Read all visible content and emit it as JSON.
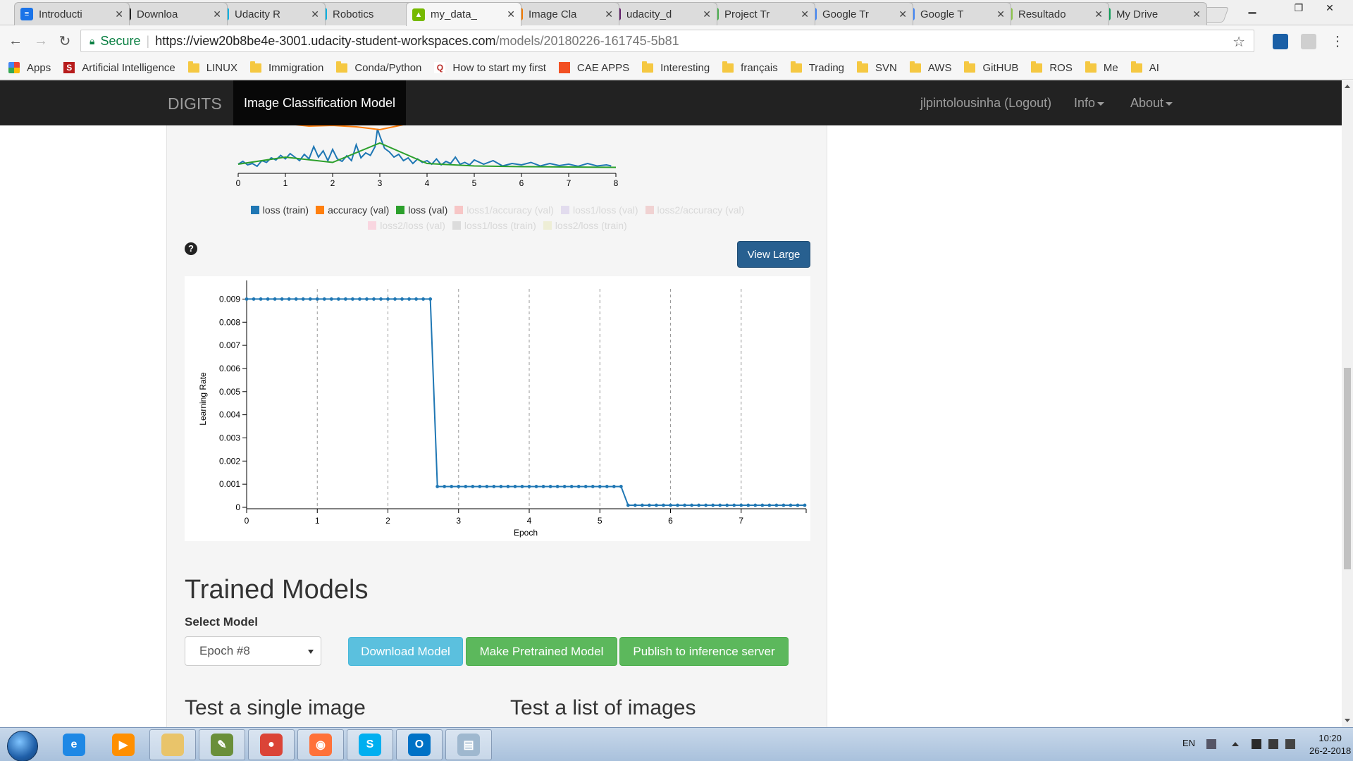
{
  "browser": {
    "tabs": [
      {
        "title": "Introducti",
        "fav_color": "#1a73e8",
        "fav_glyph": "≡",
        "active": false
      },
      {
        "title": "Downloa",
        "fav_color": "#222222",
        "fav_glyph": "●",
        "active": false
      },
      {
        "title": "Udacity R",
        "fav_color": "#02b3e4",
        "fav_glyph": "U",
        "active": false
      },
      {
        "title": "Robotics",
        "fav_color": "#02b3e4",
        "fav_glyph": "U",
        "active": false
      },
      {
        "title": "my_data_",
        "fav_color": "#76b900",
        "fav_glyph": "▲",
        "active": true
      },
      {
        "title": "Image Cla",
        "fav_color": "#f57c00",
        "fav_glyph": "▮",
        "active": false
      },
      {
        "title": "udacity_d",
        "fav_color": "#611f69",
        "fav_glyph": "#",
        "active": false
      },
      {
        "title": "Project Tr",
        "fav_color": "#4caf50",
        "fav_glyph": "6",
        "active": false
      },
      {
        "title": "Google Tr",
        "fav_color": "#4285f4",
        "fav_glyph": "G",
        "active": false
      },
      {
        "title": "Google T",
        "fav_color": "#4285f4",
        "fav_glyph": "G",
        "active": false
      },
      {
        "title": "Resultado",
        "fav_color": "#8bc34a",
        "fav_glyph": "P",
        "active": false
      },
      {
        "title": "My Drive",
        "fav_color": "#0f9d58",
        "fav_glyph": "▲",
        "active": false
      }
    ],
    "secure_label": "Secure",
    "url_host": "https://view20b8be4e-3001.udacity-student-workspaces.com",
    "url_path": "/models/20180226-161745-5b81",
    "bookmarks": [
      {
        "label": "Apps",
        "kind": "apps"
      },
      {
        "label": "Artificial Intelligence",
        "kind": "site",
        "color": "#b71c1c",
        "glyph": "S"
      },
      {
        "label": "LINUX",
        "kind": "folder"
      },
      {
        "label": "Immigration",
        "kind": "folder"
      },
      {
        "label": "Conda/Python",
        "kind": "folder"
      },
      {
        "label": "How to start my first",
        "kind": "site",
        "color": "#ffffff",
        "glyph": "Q"
      },
      {
        "label": "CAE APPS",
        "kind": "site",
        "color": "#f25022",
        "glyph": ""
      },
      {
        "label": "Interesting",
        "kind": "folder"
      },
      {
        "label": "français",
        "kind": "folder"
      },
      {
        "label": "Trading",
        "kind": "folder"
      },
      {
        "label": "SVN",
        "kind": "folder"
      },
      {
        "label": "AWS",
        "kind": "folder"
      },
      {
        "label": "GitHUB",
        "kind": "folder"
      },
      {
        "label": "ROS",
        "kind": "folder"
      },
      {
        "label": "Me",
        "kind": "folder"
      },
      {
        "label": "AI",
        "kind": "folder"
      }
    ]
  },
  "navbar": {
    "brand": "DIGITS",
    "active": "Image Classification Model",
    "user": "jlpintolousinha (Logout)",
    "info": "Info",
    "about": "About"
  },
  "colors": {
    "loss_train": "#1f77b4",
    "accuracy_val": "#ff7f0e",
    "loss_val": "#2ca02c"
  },
  "chart_data": [
    {
      "type": "line",
      "x_ticks": [
        "0",
        "1",
        "2",
        "3",
        "4",
        "5",
        "6",
        "7",
        "8"
      ],
      "xlim": [
        0,
        8
      ],
      "series": [
        {
          "name": "loss (train)",
          "color": "#1f77b4",
          "x": [
            0,
            0.1,
            0.2,
            0.3,
            0.4,
            0.5,
            0.6,
            0.7,
            0.8,
            0.9,
            1.0,
            1.1,
            1.2,
            1.3,
            1.4,
            1.5,
            1.6,
            1.7,
            1.8,
            1.9,
            2.0,
            2.1,
            2.2,
            2.3,
            2.4,
            2.5,
            2.6,
            2.7,
            2.8,
            2.9,
            2.95,
            3.0,
            3.1,
            3.2,
            3.3,
            3.4,
            3.5,
            3.6,
            3.7,
            3.8,
            3.9,
            4.0,
            4.1,
            4.2,
            4.3,
            4.4,
            4.5,
            4.6,
            4.7,
            4.8,
            4.9,
            5.0,
            5.2,
            5.4,
            5.6,
            5.8,
            6.0,
            6.2,
            6.4,
            6.6,
            6.8,
            7.0,
            7.2,
            7.4,
            7.6,
            7.8,
            7.9
          ],
          "y": [
            0.1,
            0.18,
            0.08,
            0.12,
            0.04,
            0.2,
            0.15,
            0.28,
            0.22,
            0.35,
            0.25,
            0.4,
            0.3,
            0.2,
            0.38,
            0.25,
            0.6,
            0.3,
            0.48,
            0.2,
            0.52,
            0.25,
            0.18,
            0.34,
            0.2,
            0.65,
            0.28,
            0.42,
            0.35,
            0.6,
            1.1,
            0.9,
            0.55,
            0.45,
            0.3,
            0.38,
            0.2,
            0.28,
            0.12,
            0.25,
            0.15,
            0.2,
            0.1,
            0.25,
            0.08,
            0.18,
            0.12,
            0.3,
            0.1,
            0.15,
            0.08,
            0.22,
            0.1,
            0.2,
            0.05,
            0.12,
            0.08,
            0.15,
            0.05,
            0.12,
            0.06,
            0.1,
            0.04,
            0.12,
            0.05,
            0.08,
            0.05
          ]
        },
        {
          "name": "accuracy (val)",
          "color": "#ff7f0e",
          "x": [
            0.6,
            1.0,
            1.5,
            2.0,
            2.5,
            3.0,
            3.5,
            3.9
          ],
          "y": [
            1.35,
            1.25,
            1.18,
            1.2,
            1.16,
            1.08,
            1.22,
            1.4
          ]
        },
        {
          "name": "loss (val)",
          "color": "#2ca02c",
          "x": [
            0,
            1.0,
            2.0,
            3.0,
            4.0,
            5.0,
            6.0,
            7.0,
            8.0
          ],
          "y": [
            0.1,
            0.3,
            0.15,
            0.7,
            0.12,
            0.05,
            0.03,
            0.02,
            0.01
          ]
        }
      ],
      "legend_hidden": [
        "loss1/accuracy (val)",
        "loss1/loss (val)",
        "loss2/accuracy (val)",
        "loss2/loss (val)",
        "loss1/loss (train)",
        "loss2/loss (train)"
      ]
    },
    {
      "type": "line",
      "xlabel": "Epoch",
      "ylabel": "Learning Rate",
      "xlim": [
        0,
        7.9
      ],
      "ylim": [
        0,
        0.0095
      ],
      "x_ticks": [
        0,
        1,
        2,
        3,
        4,
        5,
        6,
        7
      ],
      "y_ticks": [
        "0",
        "0.001",
        "0.002",
        "0.003",
        "0.004",
        "0.005",
        "0.006",
        "0.007",
        "0.008",
        "0.009"
      ],
      "grid": "vertical dashed",
      "series": [
        {
          "name": "Learning Rate",
          "color": "#1f77b4",
          "segments": [
            {
              "x_start": 0,
              "x_end": 2.6,
              "y": 0.009
            },
            {
              "x_start": 2.7,
              "x_end": 5.3,
              "y": 0.0009
            },
            {
              "x_start": 5.4,
              "x_end": 7.9,
              "y": 9e-05
            }
          ]
        }
      ]
    }
  ],
  "help_icon": "?",
  "view_large": "View Large",
  "trained": {
    "title": "Trained Models",
    "select_label": "Select Model",
    "selected": "Epoch #8",
    "download": "Download Model",
    "pretrained": "Make Pretrained Model",
    "publish": "Publish to inference server",
    "test_single": "Test a single image",
    "test_list": "Test a list of images"
  },
  "taskbar": {
    "apps": [
      {
        "name": "internet-explorer-icon",
        "color": "#1e88e5",
        "glyph": "e",
        "open": false
      },
      {
        "name": "media-player-icon",
        "color": "#ff8f00",
        "glyph": "▶",
        "open": false
      },
      {
        "name": "file-explorer-icon",
        "color": "#e9c46a",
        "glyph": "",
        "open": true
      },
      {
        "name": "tool-icon",
        "color": "#6a8f3a",
        "glyph": "✎",
        "open": true
      },
      {
        "name": "chrome-icon",
        "color": "#db4437",
        "glyph": "●",
        "open": true
      },
      {
        "name": "firefox-icon",
        "color": "#ff7139",
        "glyph": "◉",
        "open": true
      },
      {
        "name": "skype-icon",
        "color": "#00aff0",
        "glyph": "S",
        "open": true
      },
      {
        "name": "outlook-icon",
        "color": "#0072c6",
        "glyph": "O",
        "open": true
      },
      {
        "name": "notepad-icon",
        "color": "#9fb8cf",
        "glyph": "▤",
        "open": true
      }
    ],
    "lang": "EN",
    "time": "10:20",
    "date": "26-2-2018"
  }
}
